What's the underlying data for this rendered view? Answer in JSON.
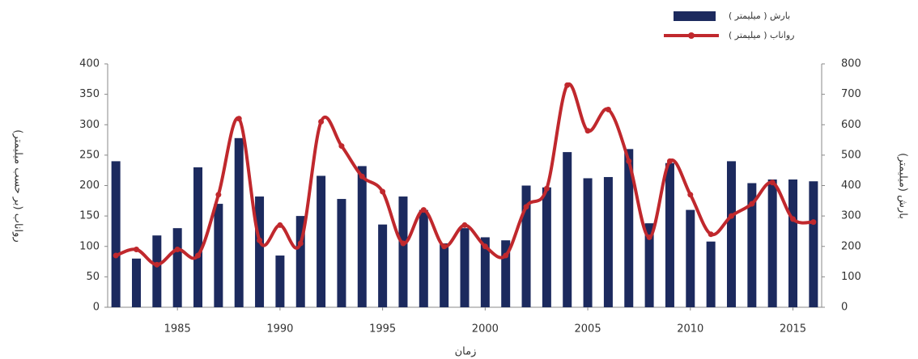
{
  "chart_data": {
    "type": "bar-line",
    "x_label": "زمان",
    "y_label": "رواناب (بر حسب میلیمتر)",
    "y2_label": "بارش (میلیمتر)",
    "x": [
      1982,
      1983,
      1984,
      1985,
      1986,
      1987,
      1988,
      1989,
      1990,
      1991,
      1992,
      1993,
      1994,
      1995,
      1996,
      1997,
      1998,
      1999,
      2000,
      2001,
      2002,
      2003,
      2004,
      2005,
      2006,
      2007,
      2008,
      2009,
      2010,
      2011,
      2012,
      2013,
      2014,
      2015,
      2016
    ],
    "xlim": [
      1981.6,
      2016.4
    ],
    "xticks": [
      1985,
      1990,
      1995,
      2000,
      2005,
      2010,
      2015
    ],
    "ylim": [
      0,
      400
    ],
    "yticks": [
      0,
      50,
      100,
      150,
      200,
      250,
      300,
      350,
      400
    ],
    "y2lim": [
      0,
      800
    ],
    "y2ticks": [
      0,
      100,
      200,
      300,
      400,
      500,
      600,
      700,
      800
    ],
    "legend": "top-right",
    "series": [
      {
        "name": "بارش ( میلیمتر )",
        "kind": "bar",
        "axis": "y2",
        "color": "#1c2a5e",
        "values": [
          480,
          160,
          236,
          260,
          460,
          340,
          556,
          364,
          170,
          300,
          432,
          356,
          464,
          272,
          364,
          320,
          210,
          260,
          230,
          220,
          400,
          394,
          510,
          424,
          428,
          520,
          276,
          474,
          320,
          216,
          480,
          408,
          420,
          420,
          414
        ]
      },
      {
        "name": "رواناب ( میلیمتر )",
        "kind": "line",
        "axis": "y",
        "color": "#c0282d",
        "values": [
          85,
          95,
          70,
          95,
          85,
          185,
          310,
          110,
          135,
          105,
          305,
          265,
          215,
          190,
          105,
          160,
          100,
          135,
          100,
          85,
          165,
          195,
          365,
          290,
          325,
          240,
          115,
          240,
          185,
          120,
          150,
          170,
          205,
          145,
          140
        ]
      }
    ]
  }
}
